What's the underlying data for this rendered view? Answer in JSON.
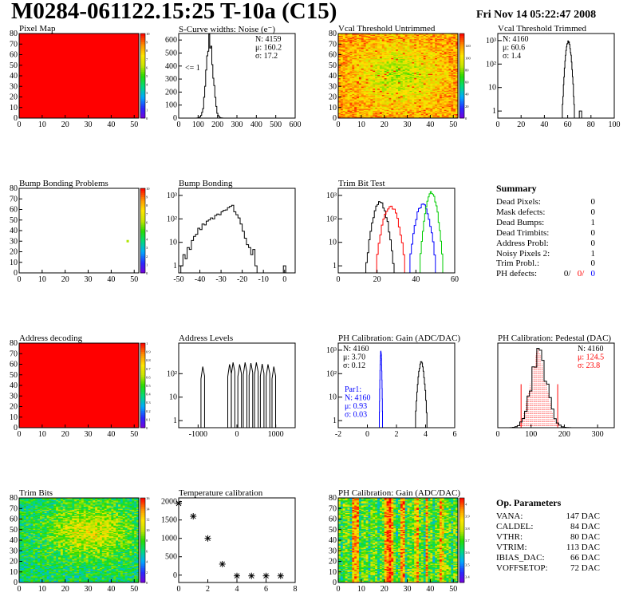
{
  "header": {
    "title": "M0284-061122.15:25 T-10a (C15)",
    "date": "Fri Nov 14 05:22:47 2008"
  },
  "colors": {
    "red": "#ff0000",
    "blue": "#0000ff",
    "green": "#00cc00",
    "black": "#000000"
  },
  "chart_data": [
    {
      "id": "pixel-map",
      "type": "heatmap",
      "title": "Pixel Map",
      "xlim": [
        0,
        52
      ],
      "ylim": [
        0,
        80
      ],
      "x_ticks": [
        0,
        10,
        20,
        30,
        40,
        50
      ],
      "y_ticks": [
        0,
        10,
        20,
        30,
        40,
        50,
        60,
        70,
        80
      ],
      "z_ticks": [
        0,
        1,
        2,
        3,
        4,
        5,
        6,
        7,
        8,
        9,
        10
      ],
      "zlim": [
        0,
        10
      ],
      "fill": "uniform",
      "value": 10
    },
    {
      "id": "scurve-noise",
      "type": "histogram",
      "title": "S-Curve widths: Noise (e⁻)",
      "xlim": [
        0,
        600
      ],
      "ylim": [
        0,
        650
      ],
      "x_ticks": [
        0,
        100,
        200,
        300,
        400,
        500,
        600
      ],
      "y_ticks": [
        0,
        100,
        200,
        300,
        400,
        500,
        600
      ],
      "stats": [
        "N: 4159",
        "μ: 160.2",
        "σ: 17.2"
      ],
      "annotation": "<= 1",
      "peak": {
        "mean": 160,
        "sigma": 17,
        "max": 600
      }
    },
    {
      "id": "vcal-untrimmed",
      "type": "heatmap",
      "title": "Vcal Threshold Untrimmed",
      "xlim": [
        0,
        52
      ],
      "ylim": [
        0,
        80
      ],
      "x_ticks": [
        0,
        10,
        20,
        30,
        40,
        50
      ],
      "y_ticks": [
        0,
        10,
        20,
        30,
        40,
        50,
        60,
        70,
        80
      ],
      "z_ticks": [
        0,
        20,
        40,
        60,
        80,
        100,
        120
      ],
      "zlim": [
        0,
        140
      ],
      "fill": "noise-center",
      "z_center": [
        75,
        110
      ]
    },
    {
      "id": "vcal-trimmed",
      "type": "histogram",
      "title": "Vcal Threshold Trimmed",
      "xlim": [
        0,
        100
      ],
      "log": true,
      "ylim": [
        0.5,
        2000
      ],
      "x_ticks": [
        0,
        20,
        40,
        60,
        80,
        100
      ],
      "y_ticks": [
        1,
        10,
        100,
        1000
      ],
      "y_tick_labels": [
        "1",
        "10",
        "10²",
        "10³"
      ],
      "stats": [
        "N: 4160",
        "μ: 60.6",
        "σ:  1.4"
      ],
      "peak": {
        "mean": 60.6,
        "sigma": 1.4,
        "max": 900
      },
      "extra": [
        {
          "x": 71,
          "y": 1
        }
      ]
    },
    {
      "id": "bump-problems",
      "type": "heatmap",
      "title": "Bump Bonding Problems",
      "xlim": [
        0,
        52
      ],
      "ylim": [
        0,
        80
      ],
      "x_ticks": [
        0,
        10,
        20,
        30,
        40,
        50
      ],
      "y_ticks": [
        0,
        10,
        20,
        30,
        40,
        50,
        60,
        70,
        80
      ],
      "z_ticks": [
        0,
        1,
        2,
        3,
        4,
        5,
        6,
        7,
        8,
        9,
        10
      ],
      "zlim": [
        0,
        10
      ],
      "fill": "sparse",
      "points": [
        {
          "x": 47,
          "y": 30,
          "z": 6
        }
      ]
    },
    {
      "id": "bump-bonding",
      "type": "histogram",
      "title": "Bump Bonding",
      "xlim": [
        -50,
        5
      ],
      "log": true,
      "ylim": [
        0.5,
        2000
      ],
      "x_ticks": [
        -50,
        -40,
        -30,
        -20,
        -10,
        0
      ],
      "y_ticks": [
        1,
        10,
        100,
        1000
      ],
      "y_tick_labels": [
        "1",
        "10",
        "10²",
        "10³"
      ],
      "curve": [
        [
          -50,
          0.5
        ],
        [
          -49,
          1
        ],
        [
          -48,
          3
        ],
        [
          -47,
          2
        ],
        [
          -46,
          6
        ],
        [
          -45,
          5
        ],
        [
          -44,
          12
        ],
        [
          -43,
          18
        ],
        [
          -42,
          22
        ],
        [
          -41,
          40
        ],
        [
          -40,
          35
        ],
        [
          -39,
          60
        ],
        [
          -38,
          55
        ],
        [
          -37,
          80
        ],
        [
          -36,
          90
        ],
        [
          -35,
          110
        ],
        [
          -34,
          100
        ],
        [
          -33,
          140
        ],
        [
          -32,
          160
        ],
        [
          -31,
          150
        ],
        [
          -30,
          200
        ],
        [
          -29,
          230
        ],
        [
          -28,
          240
        ],
        [
          -27,
          300
        ],
        [
          -26,
          340
        ],
        [
          -25,
          380
        ],
        [
          -24,
          200
        ],
        [
          -23,
          150
        ],
        [
          -22,
          110
        ],
        [
          -21,
          60
        ],
        [
          -20,
          30
        ],
        [
          -19,
          15
        ],
        [
          -18,
          8
        ],
        [
          -17,
          6
        ],
        [
          -16,
          3
        ],
        [
          -15,
          5
        ],
        [
          -14,
          1
        ],
        [
          -13,
          0.5
        ]
      ],
      "extra": [
        {
          "x": 0,
          "y": 1
        }
      ]
    },
    {
      "id": "trim-bit-test",
      "type": "histogram",
      "title": "Trim Bit Test",
      "xlim": [
        0,
        60
      ],
      "log": true,
      "ylim": [
        0.5,
        2000
      ],
      "x_ticks": [
        0,
        20,
        40,
        60
      ],
      "y_ticks": [
        1,
        10,
        100,
        1000
      ],
      "y_tick_labels": [
        "1",
        "10",
        "10²",
        "10³"
      ],
      "series": [
        {
          "color": "#000000",
          "mean": 21.5,
          "sigma": 2.0,
          "max": 500
        },
        {
          "color": "#ff0000",
          "mean": 27,
          "sigma": 2.2,
          "max": 350
        },
        {
          "color": "#0000ff",
          "mean": 43.5,
          "sigma": 2.0,
          "max": 400
        },
        {
          "color": "#00cc00",
          "mean": 48,
          "sigma": 1.6,
          "max": 1300
        }
      ]
    },
    {
      "id": "address-decoding",
      "type": "heatmap",
      "title": "Address decoding",
      "xlim": [
        0,
        52
      ],
      "ylim": [
        0,
        80
      ],
      "x_ticks": [
        0,
        10,
        20,
        30,
        40,
        50
      ],
      "y_ticks": [
        0,
        10,
        20,
        30,
        40,
        50,
        60,
        70,
        80
      ],
      "z_ticks": [
        0,
        0.1,
        0.2,
        0.3,
        0.4,
        0.5,
        0.6,
        0.7,
        0.8,
        0.9,
        1
      ],
      "zlim": [
        0,
        1
      ],
      "fill": "uniform",
      "value": 1
    },
    {
      "id": "address-levels",
      "type": "histogram",
      "title": "Address Levels",
      "xlim": [
        -1500,
        1500
      ],
      "log": true,
      "ylim": [
        0.5,
        2000
      ],
      "x_ticks": [
        -1000,
        0,
        1000
      ],
      "y_ticks": [
        1,
        10,
        100
      ],
      "y_tick_labels": [
        "1",
        "10",
        "10²"
      ],
      "spikes": [
        {
          "x": -880,
          "h": 200
        },
        {
          "x": -190,
          "h": 250
        },
        {
          "x": -100,
          "h": 300
        },
        {
          "x": 70,
          "h": 250
        },
        {
          "x": 210,
          "h": 300
        },
        {
          "x": 360,
          "h": 280
        },
        {
          "x": 500,
          "h": 300
        },
        {
          "x": 650,
          "h": 260
        },
        {
          "x": 800,
          "h": 250
        },
        {
          "x": 950,
          "h": 200
        }
      ]
    },
    {
      "id": "ph-gain",
      "type": "histogram",
      "title": "PH Calibration: Gain (ADC/DAC)",
      "xlim": [
        -2,
        6
      ],
      "log": true,
      "ylim": [
        0.5,
        2000
      ],
      "x_ticks": [
        -2,
        0,
        2,
        4,
        6
      ],
      "y_ticks": [
        1,
        10,
        100,
        1000
      ],
      "y_tick_labels": [
        "1",
        "10",
        "10²",
        "10³"
      ],
      "stats": [
        "N: 4160",
        "μ: 3.70",
        "σ: 0.12"
      ],
      "stats2": [
        "Par1:",
        "N: 4160",
        "μ: 0.93",
        "σ: 0.03"
      ],
      "series": [
        {
          "color": "#000000",
          "mean": 3.7,
          "sigma": 0.12,
          "max": 300
        },
        {
          "color": "#0000ff",
          "mean": 0.93,
          "sigma": 0.03,
          "max": 900
        }
      ]
    },
    {
      "id": "ph-pedestal",
      "type": "histogram",
      "title": "PH Calibration: Pedestal (DAC)",
      "xlim": [
        0,
        350
      ],
      "ylim": [
        0,
        105
      ],
      "x_ticks": [
        0,
        100,
        200,
        300
      ],
      "y_ticks": [],
      "stats": [
        "N: 4160",
        "μ: 124.5",
        "σ: 23.8"
      ],
      "peak": {
        "mean": 124.5,
        "sigma": 23.8,
        "max": 90
      },
      "hatched": true,
      "marks": [
        70,
        180
      ]
    },
    {
      "id": "trim-bits",
      "type": "heatmap",
      "title": "Trim Bits",
      "xlim": [
        0,
        52
      ],
      "ylim": [
        0,
        80
      ],
      "x_ticks": [
        0,
        10,
        20,
        30,
        40,
        50
      ],
      "y_ticks": [
        0,
        10,
        20,
        30,
        40,
        50,
        60,
        70,
        80
      ],
      "z_ticks": [
        0,
        2,
        4,
        6,
        8,
        10,
        12,
        14,
        16
      ],
      "zlim": [
        0,
        16
      ],
      "fill": "noise-trim",
      "z_center": [
        6,
        11
      ]
    },
    {
      "id": "temperature-calibration",
      "type": "scatter",
      "title": "Temperature calibration",
      "xlim": [
        0,
        8
      ],
      "ylim": [
        -200,
        2100
      ],
      "x_ticks": [
        0,
        2,
        4,
        6,
        8
      ],
      "y_ticks": [
        0,
        500,
        1000,
        1500,
        2000
      ],
      "points": [
        [
          0,
          1950
        ],
        [
          1,
          1600
        ],
        [
          2,
          1000
        ],
        [
          3,
          300
        ],
        [
          4,
          -20
        ],
        [
          5,
          -20
        ],
        [
          6,
          -20
        ],
        [
          7,
          -20
        ]
      ]
    },
    {
      "id": "ph-gain-map",
      "type": "heatmap",
      "title": "PH Calibration: Gain (ADC/DAC)",
      "xlim": [
        0,
        52
      ],
      "ylim": [
        0,
        80
      ],
      "x_ticks": [
        0,
        10,
        20,
        30,
        40,
        50
      ],
      "y_ticks": [
        0,
        10,
        20,
        30,
        40,
        50,
        60,
        70,
        80
      ],
      "z_ticks": [
        3.4,
        3.5,
        3.6,
        3.7,
        3.8,
        3.9,
        4.0
      ],
      "zlim": [
        3.35,
        4.05
      ],
      "fill": "noise-columns"
    }
  ],
  "summary": {
    "title": "Summary",
    "rows": [
      {
        "label": "Dead Pixels:",
        "value": "0"
      },
      {
        "label": "Mask defects:",
        "value": "0"
      },
      {
        "label": "Dead Bumps:",
        "value": "1"
      },
      {
        "label": "Dead Trimbits:",
        "value": "0"
      },
      {
        "label": "Address Probl:",
        "value": "0"
      },
      {
        "label": "Noisy Pixels 2:",
        "value": "1"
      },
      {
        "label": "Trim Probl.:",
        "value": "0"
      }
    ],
    "ph_label": "PH defects:",
    "ph_values": [
      "0/",
      "0/",
      "0"
    ]
  },
  "op_params": {
    "title": "Op. Parameters",
    "rows": [
      {
        "label": "VANA:",
        "value": "147 DAC"
      },
      {
        "label": "CALDEL:",
        "value": "84 DAC"
      },
      {
        "label": "VTHR:",
        "value": "80 DAC"
      },
      {
        "label": "VTRIM:",
        "value": "113 DAC"
      },
      {
        "label": "IBIAS_DAC:",
        "value": "66 DAC"
      },
      {
        "label": "VOFFSETOP:",
        "value": "72 DAC"
      }
    ]
  }
}
